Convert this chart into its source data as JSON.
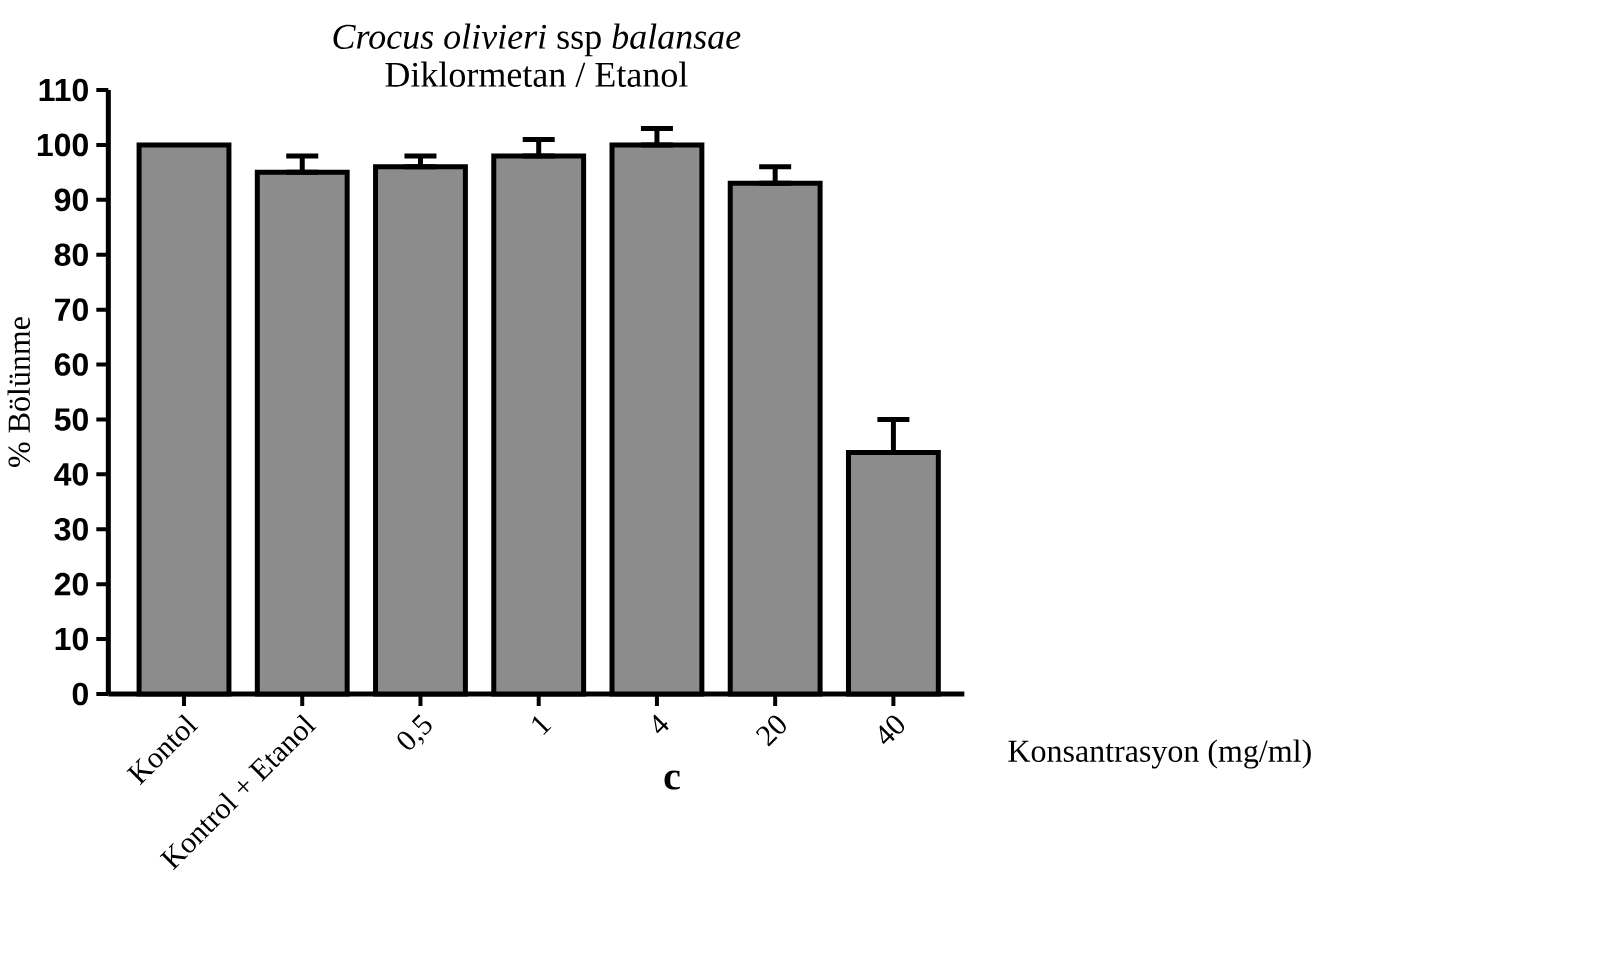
{
  "chart_data": {
    "type": "bar",
    "title": "*Crocus olivieri* ssp *balansae*",
    "subtitle": "Diklormetan / Etanol",
    "xlabel": "Konsantrasyon (mg/ml)",
    "ylabel": "% Bölünme",
    "categories": [
      "Kontol",
      "Kontrol + Etanol",
      "0,5",
      "1",
      "4",
      "20",
      "40"
    ],
    "values": [
      100,
      95,
      96,
      98,
      100,
      93,
      44
    ],
    "errors": [
      null,
      [
        95,
        98
      ],
      [
        96,
        98
      ],
      [
        98,
        101
      ],
      [
        100,
        103
      ],
      [
        93,
        96
      ],
      [
        44,
        50
      ]
    ],
    "color": "#8c8c8c",
    "ylim": [
      0,
      110
    ],
    "yticks": [
      0,
      10,
      20,
      30,
      40,
      50,
      60,
      70,
      80,
      90,
      100,
      110
    ],
    "annotations": [
      "c"
    ]
  }
}
